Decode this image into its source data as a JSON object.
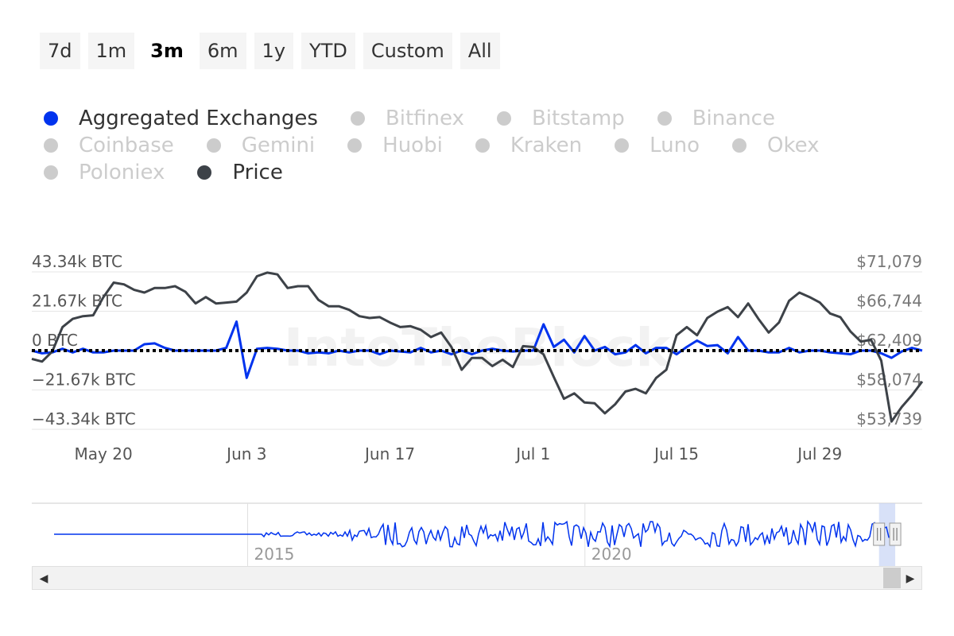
{
  "range_buttons": [
    {
      "label": "7d",
      "active": false
    },
    {
      "label": "1m",
      "active": false
    },
    {
      "label": "3m",
      "active": true
    },
    {
      "label": "6m",
      "active": false
    },
    {
      "label": "1y",
      "active": false
    },
    {
      "label": "YTD",
      "active": false
    },
    {
      "label": "Custom",
      "active": false
    },
    {
      "label": "All",
      "active": false
    }
  ],
  "legend": [
    [
      {
        "label": "Aggregated Exchanges",
        "color": "#0033ee",
        "visible": true
      },
      {
        "label": "Bitfinex",
        "color": "#cccccc",
        "visible": false
      },
      {
        "label": "Bitstamp",
        "color": "#cccccc",
        "visible": false
      },
      {
        "label": "Binance",
        "color": "#cccccc",
        "visible": false
      }
    ],
    [
      {
        "label": "Coinbase",
        "color": "#cccccc",
        "visible": false
      },
      {
        "label": "Gemini",
        "color": "#cccccc",
        "visible": false
      },
      {
        "label": "Huobi",
        "color": "#cccccc",
        "visible": false
      },
      {
        "label": "Kraken",
        "color": "#cccccc",
        "visible": false
      },
      {
        "label": "Luno",
        "color": "#cccccc",
        "visible": false
      },
      {
        "label": "Okex",
        "color": "#cccccc",
        "visible": false
      }
    ],
    [
      {
        "label": "Poloniex",
        "color": "#cccccc",
        "visible": false
      },
      {
        "label": "Price",
        "color": "#3d4248",
        "visible": true
      }
    ]
  ],
  "watermark": "IntoTheBlock",
  "chart_data": {
    "type": "line",
    "x_range": [
      "2024-05-13",
      "2024-08-08"
    ],
    "x_ticks": [
      {
        "date": "2024-05-20",
        "label": "May 20"
      },
      {
        "date": "2024-06-03",
        "label": "Jun 3"
      },
      {
        "date": "2024-06-17",
        "label": "Jun 17"
      },
      {
        "date": "2024-07-01",
        "label": "Jul 1"
      },
      {
        "date": "2024-07-15",
        "label": "Jul 15"
      },
      {
        "date": "2024-07-29",
        "label": "Jul 29"
      }
    ],
    "y_left": {
      "min": -43340,
      "max": 43340,
      "ticks": [
        43340,
        21670,
        0,
        -21670,
        -43340
      ],
      "tick_labels": [
        "43.34k BTC",
        "21.67k BTC",
        "0 BTC",
        "−21.67k BTC",
        "−43.34k BTC"
      ]
    },
    "y_right": {
      "min": 53739,
      "max": 71079,
      "ticks": [
        71079,
        66744,
        62409,
        58074,
        53739
      ],
      "tick_labels": [
        "$71,079",
        "$66,744",
        "$62,409",
        "$58,074",
        "$53,739"
      ]
    },
    "zero_line": "dotted",
    "series": [
      {
        "name": "Aggregated Exchanges",
        "axis": "left",
        "color": "#0033ee",
        "x": [
          "2024-05-13",
          "2024-05-14",
          "2024-05-15",
          "2024-05-16",
          "2024-05-17",
          "2024-05-18",
          "2024-05-19",
          "2024-05-20",
          "2024-05-21",
          "2024-05-22",
          "2024-05-23",
          "2024-05-24",
          "2024-05-25",
          "2024-05-26",
          "2024-05-27",
          "2024-05-28",
          "2024-05-29",
          "2024-05-30",
          "2024-05-31",
          "2024-06-01",
          "2024-06-02",
          "2024-06-03",
          "2024-06-04",
          "2024-06-05",
          "2024-06-06",
          "2024-06-07",
          "2024-06-08",
          "2024-06-09",
          "2024-06-10",
          "2024-06-11",
          "2024-06-12",
          "2024-06-13",
          "2024-06-14",
          "2024-06-15",
          "2024-06-16",
          "2024-06-17",
          "2024-06-18",
          "2024-06-19",
          "2024-06-20",
          "2024-06-21",
          "2024-06-22",
          "2024-06-23",
          "2024-06-24",
          "2024-06-25",
          "2024-06-26",
          "2024-06-27",
          "2024-06-28",
          "2024-06-29",
          "2024-06-30",
          "2024-07-01",
          "2024-07-02",
          "2024-07-03",
          "2024-07-04",
          "2024-07-05",
          "2024-07-06",
          "2024-07-07",
          "2024-07-08",
          "2024-07-09",
          "2024-07-10",
          "2024-07-11",
          "2024-07-12",
          "2024-07-13",
          "2024-07-14",
          "2024-07-15",
          "2024-07-16",
          "2024-07-17",
          "2024-07-18",
          "2024-07-19",
          "2024-07-20",
          "2024-07-21",
          "2024-07-22",
          "2024-07-23",
          "2024-07-24",
          "2024-07-25",
          "2024-07-26",
          "2024-07-27",
          "2024-07-28",
          "2024-07-29",
          "2024-07-30",
          "2024-07-31",
          "2024-08-01",
          "2024-08-02",
          "2024-08-03",
          "2024-08-04",
          "2024-08-05",
          "2024-08-06",
          "2024-08-07",
          "2024-08-08"
        ],
        "y": [
          0,
          -1500,
          -1000,
          1000,
          -1000,
          1000,
          -1000,
          -1000,
          0,
          0,
          0,
          3500,
          4000,
          1500,
          0,
          0,
          0,
          0,
          0,
          1500,
          16000,
          -15000,
          1000,
          1500,
          1000,
          0,
          0,
          -1500,
          -1000,
          -1500,
          0,
          -1000,
          0,
          0,
          -2000,
          0,
          -500,
          -1000,
          1500,
          -1000,
          0,
          -2000,
          0,
          -2000,
          0,
          1000,
          0,
          -500,
          0,
          0,
          14500,
          2000,
          6000,
          -1000,
          8000,
          0,
          2000,
          -2000,
          -1000,
          3000,
          -1500,
          1500,
          1500,
          -2000,
          2000,
          5500,
          2500,
          3000,
          -1500,
          7500,
          0,
          0,
          -1000,
          -1000,
          1500,
          -1000,
          0,
          0,
          -1000,
          -1500,
          -2000,
          0,
          0,
          -1500,
          -4000,
          -500,
          1500,
          0
        ]
      },
      {
        "name": "Price",
        "axis": "right",
        "color": "#3d4248",
        "x": [
          "2024-05-13",
          "2024-05-14",
          "2024-05-15",
          "2024-05-16",
          "2024-05-17",
          "2024-05-18",
          "2024-05-19",
          "2024-05-20",
          "2024-05-21",
          "2024-05-22",
          "2024-05-23",
          "2024-05-24",
          "2024-05-25",
          "2024-05-26",
          "2024-05-27",
          "2024-05-28",
          "2024-05-29",
          "2024-05-30",
          "2024-05-31",
          "2024-06-01",
          "2024-06-02",
          "2024-06-03",
          "2024-06-04",
          "2024-06-05",
          "2024-06-06",
          "2024-06-07",
          "2024-06-08",
          "2024-06-09",
          "2024-06-10",
          "2024-06-11",
          "2024-06-12",
          "2024-06-13",
          "2024-06-14",
          "2024-06-15",
          "2024-06-16",
          "2024-06-17",
          "2024-06-18",
          "2024-06-19",
          "2024-06-20",
          "2024-06-21",
          "2024-06-22",
          "2024-06-23",
          "2024-06-24",
          "2024-06-25",
          "2024-06-26",
          "2024-06-27",
          "2024-06-28",
          "2024-06-29",
          "2024-06-30",
          "2024-07-01",
          "2024-07-02",
          "2024-07-03",
          "2024-07-04",
          "2024-07-05",
          "2024-07-06",
          "2024-07-07",
          "2024-07-08",
          "2024-07-09",
          "2024-07-10",
          "2024-07-11",
          "2024-07-12",
          "2024-07-13",
          "2024-07-14",
          "2024-07-15",
          "2024-07-16",
          "2024-07-17",
          "2024-07-18",
          "2024-07-19",
          "2024-07-20",
          "2024-07-21",
          "2024-07-22",
          "2024-07-23",
          "2024-07-24",
          "2024-07-25",
          "2024-07-26",
          "2024-07-27",
          "2024-07-28",
          "2024-07-29",
          "2024-07-30",
          "2024-07-31",
          "2024-08-01",
          "2024-08-02",
          "2024-08-03",
          "2024-08-04",
          "2024-08-05",
          "2024-08-06",
          "2024-08-07",
          "2024-08-08"
        ],
        "y": [
          61500,
          61200,
          62300,
          65000,
          65900,
          66200,
          66300,
          68300,
          69900,
          69700,
          69100,
          68800,
          69300,
          69300,
          69500,
          68900,
          67600,
          68300,
          67600,
          67700,
          67800,
          68800,
          70600,
          71000,
          70800,
          69300,
          69500,
          69500,
          68000,
          67300,
          67300,
          66900,
          66200,
          66000,
          66100,
          65500,
          65000,
          65100,
          64700,
          63900,
          64400,
          62800,
          60300,
          61600,
          61600,
          60700,
          61400,
          60600,
          62900,
          62800,
          62000,
          59500,
          57100,
          57700,
          56700,
          56600,
          55500,
          56500,
          57900,
          58200,
          57700,
          59400,
          60300,
          64100,
          65000,
          64100,
          66000,
          66700,
          67200,
          66100,
          67600,
          65900,
          64400,
          65500,
          67900,
          68800,
          68300,
          67700,
          66500,
          66100,
          64500,
          63400,
          63600,
          61300,
          54600,
          56200,
          57500,
          59000
        ]
      }
    ],
    "navigator": {
      "x_ticks": [
        {
          "year": 2015,
          "label": "2015"
        },
        {
          "year": 2020,
          "label": "2020"
        }
      ],
      "x_range_years": [
        2011.8,
        2025.0
      ],
      "selected_range_years": [
        2024.36,
        2024.6
      ]
    }
  }
}
